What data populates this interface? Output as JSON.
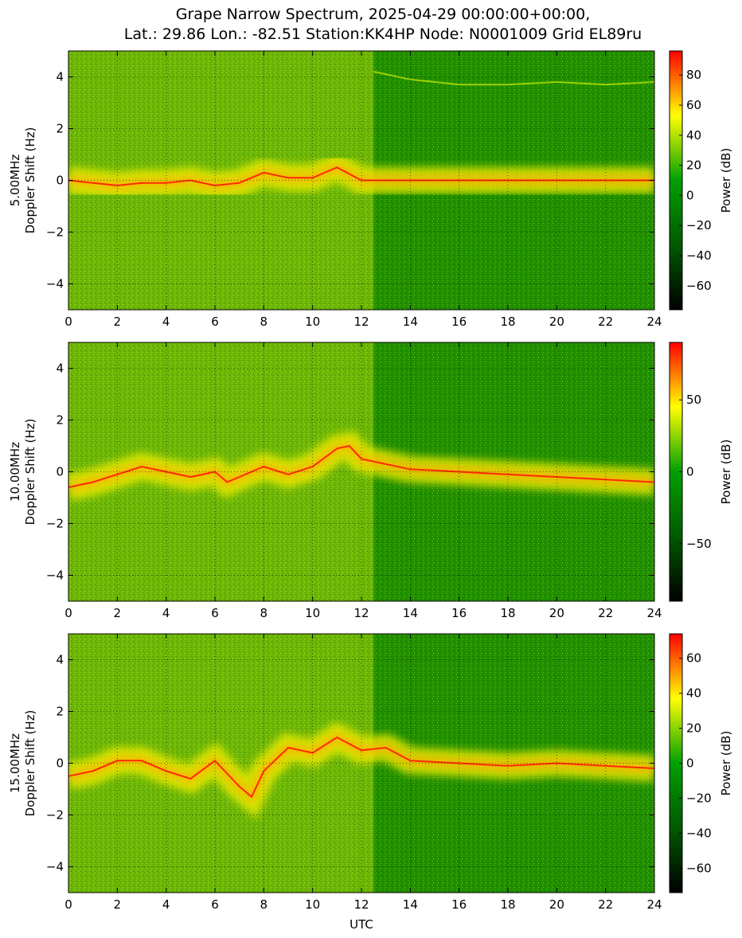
{
  "figure": {
    "title_line1": "Grape Narrow Spectrum, 2025-04-29 00:00:00+00:00,",
    "title_line2": "Lat.: 29.86 Lon.: -82.51 Station:KK4HP Node: N0001009 Grid EL89ru",
    "xlabel": "UTC",
    "colorbar_label": "Power (dB)",
    "colormap": [
      "#000000",
      "#005a00",
      "#00a000",
      "#ffff00",
      "#ff0000"
    ]
  },
  "chart_data": [
    {
      "type": "heatmap",
      "ylabel_line1": "5.00MHz",
      "ylabel_line2": "Doppler Shift (Hz)",
      "xlim": [
        0,
        24
      ],
      "ylim": [
        -5,
        5
      ],
      "x_ticks": [
        "0",
        "2",
        "4",
        "6",
        "8",
        "10",
        "12",
        "14",
        "16",
        "18",
        "20",
        "22",
        "24"
      ],
      "y_ticks": [
        "4",
        "2",
        "0",
        "−2",
        "−4"
      ],
      "grid": true,
      "colorbar": {
        "range": [
          -76,
          96
        ],
        "ticks": [
          "80",
          "60",
          "40",
          "20",
          "0",
          "−20",
          "−40",
          "−60"
        ]
      },
      "doppler_trace": [
        [
          0,
          0
        ],
        [
          1,
          -0.1
        ],
        [
          2,
          -0.2
        ],
        [
          3,
          -0.1
        ],
        [
          4,
          -0.1
        ],
        [
          5,
          0
        ],
        [
          6,
          -0.2
        ],
        [
          7,
          -0.1
        ],
        [
          8,
          0.3
        ],
        [
          9,
          0.1
        ],
        [
          10,
          0.1
        ],
        [
          11,
          0.5
        ],
        [
          12,
          0
        ],
        [
          24,
          0
        ]
      ],
      "persistent_tone": [
        [
          12.5,
          4.2
        ],
        [
          14,
          3.9
        ],
        [
          16,
          3.7
        ],
        [
          18,
          3.7
        ],
        [
          20,
          3.8
        ],
        [
          22,
          3.7
        ],
        [
          24,
          3.8
        ]
      ]
    },
    {
      "type": "heatmap",
      "ylabel_line1": "10.00MHz",
      "ylabel_line2": "Doppler Shift (Hz)",
      "xlim": [
        0,
        24
      ],
      "ylim": [
        -5,
        5
      ],
      "x_ticks": [
        "0",
        "2",
        "4",
        "6",
        "8",
        "10",
        "12",
        "14",
        "16",
        "18",
        "20",
        "22",
        "24"
      ],
      "y_ticks": [
        "4",
        "2",
        "0",
        "−2",
        "−4"
      ],
      "grid": true,
      "colorbar": {
        "range": [
          -90,
          90
        ],
        "ticks": [
          "50",
          "0",
          "−50"
        ]
      },
      "doppler_trace": [
        [
          0,
          -0.6
        ],
        [
          1,
          -0.4
        ],
        [
          2,
          -0.1
        ],
        [
          3,
          0.2
        ],
        [
          4,
          0
        ],
        [
          5,
          -0.2
        ],
        [
          6,
          0
        ],
        [
          6.5,
          -0.4
        ],
        [
          7,
          -0.2
        ],
        [
          8,
          0.2
        ],
        [
          9,
          -0.1
        ],
        [
          10,
          0.2
        ],
        [
          11,
          0.9
        ],
        [
          11.5,
          1.0
        ],
        [
          12,
          0.5
        ],
        [
          14,
          0.1
        ],
        [
          16,
          0
        ],
        [
          18,
          -0.1
        ],
        [
          20,
          -0.2
        ],
        [
          22,
          -0.3
        ],
        [
          24,
          -0.4
        ]
      ]
    },
    {
      "type": "heatmap",
      "ylabel_line1": "15.00MHz",
      "ylabel_line2": "Doppler Shift (Hz)",
      "xlim": [
        0,
        24
      ],
      "ylim": [
        -5,
        5
      ],
      "x_ticks": [
        "0",
        "2",
        "4",
        "6",
        "8",
        "10",
        "12",
        "14",
        "16",
        "18",
        "20",
        "22",
        "24"
      ],
      "y_ticks": [
        "4",
        "2",
        "0",
        "−2",
        "−4"
      ],
      "grid": true,
      "colorbar": {
        "range": [
          -74,
          74
        ],
        "ticks": [
          "60",
          "40",
          "20",
          "0",
          "−20",
          "−40",
          "−60"
        ]
      },
      "doppler_trace": [
        [
          0,
          -0.5
        ],
        [
          1,
          -0.3
        ],
        [
          2,
          0.1
        ],
        [
          3,
          0.1
        ],
        [
          4,
          -0.3
        ],
        [
          5,
          -0.6
        ],
        [
          6,
          0.1
        ],
        [
          6.5,
          -0.4
        ],
        [
          7,
          -0.9
        ],
        [
          7.5,
          -1.3
        ],
        [
          8,
          -0.3
        ],
        [
          9,
          0.6
        ],
        [
          10,
          0.4
        ],
        [
          11,
          1.0
        ],
        [
          12,
          0.5
        ],
        [
          13,
          0.6
        ],
        [
          14,
          0.1
        ],
        [
          16,
          0
        ],
        [
          18,
          -0.1
        ],
        [
          20,
          0
        ],
        [
          22,
          -0.1
        ],
        [
          24,
          -0.2
        ]
      ]
    }
  ]
}
